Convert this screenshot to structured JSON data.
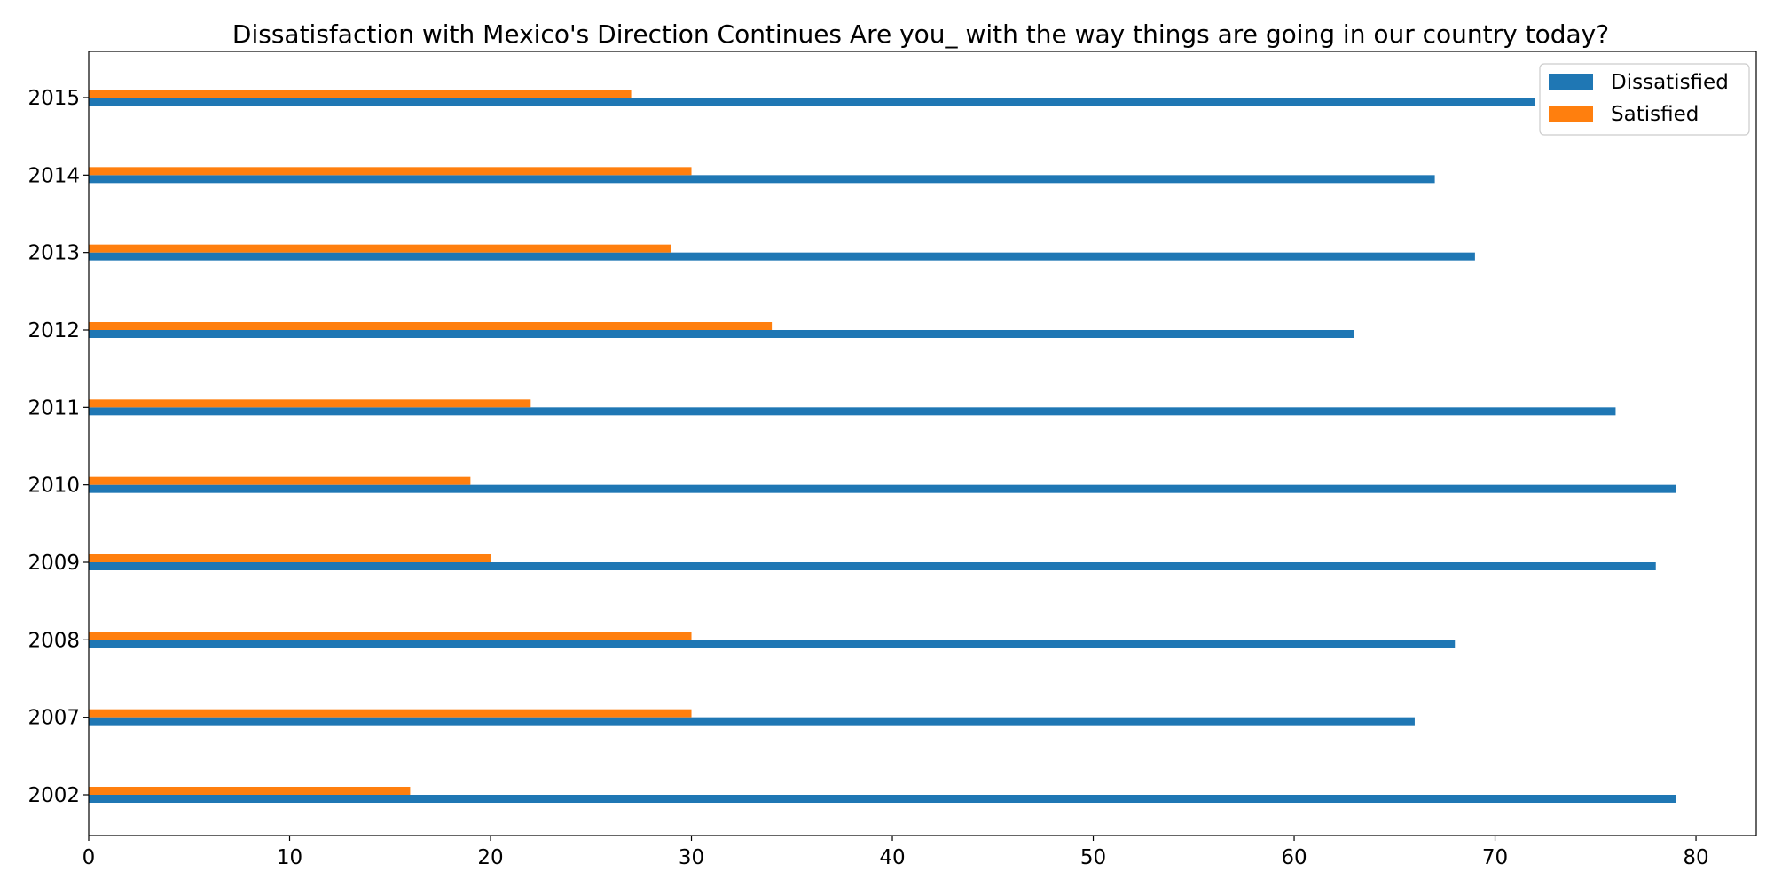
{
  "chart_data": {
    "type": "bar",
    "orientation": "horizontal",
    "title": "Dissatisfaction with Mexico's Direction Continues Are you_ with the way things are going in our country today?",
    "xlabel": "",
    "ylabel": "",
    "categories": [
      "2002",
      "2007",
      "2008",
      "2009",
      "2010",
      "2011",
      "2012",
      "2013",
      "2014",
      "2015"
    ],
    "series": [
      {
        "name": "Dissatisfied",
        "color": "#1f77b4",
        "values": [
          79,
          66,
          68,
          78,
          79,
          76,
          63,
          69,
          67,
          72
        ]
      },
      {
        "name": "Satisfied",
        "color": "#ff7f0e",
        "values": [
          16,
          30,
          30,
          20,
          19,
          22,
          34,
          29,
          30,
          27
        ]
      }
    ],
    "xlim": [
      0,
      83
    ],
    "xticks": [
      0,
      10,
      20,
      30,
      40,
      50,
      60,
      70,
      80
    ],
    "grid": false,
    "legend_position": "top-right"
  }
}
